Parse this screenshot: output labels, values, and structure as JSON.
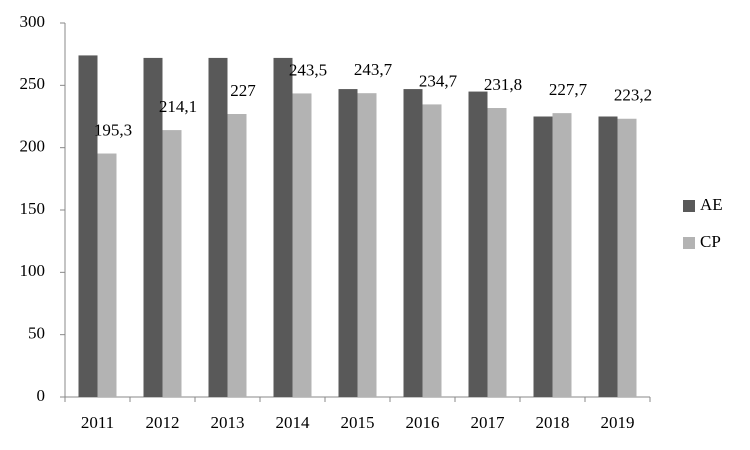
{
  "chart_data": {
    "type": "bar",
    "categories": [
      "2011",
      "2012",
      "2013",
      "2014",
      "2015",
      "2016",
      "2017",
      "2018",
      "2019"
    ],
    "series": [
      {
        "name": "AE",
        "color": "#595959",
        "values": [
          274,
          272,
          272,
          272,
          247,
          247,
          245,
          225,
          225
        ]
      },
      {
        "name": "CP",
        "color": "#b3b3b3",
        "values": [
          195.3,
          214.1,
          227,
          243.5,
          243.7,
          234.7,
          231.8,
          227.7,
          223.2
        ],
        "value_labels": [
          "195,3",
          "214,1",
          "227",
          "243,5",
          "243,7",
          "234,7",
          "231,8",
          "227,7",
          "223,2"
        ]
      }
    ],
    "ylim": [
      0,
      300
    ],
    "yticks": [
      0,
      50,
      100,
      150,
      200,
      250,
      300
    ],
    "grid": false,
    "legend": "right"
  }
}
